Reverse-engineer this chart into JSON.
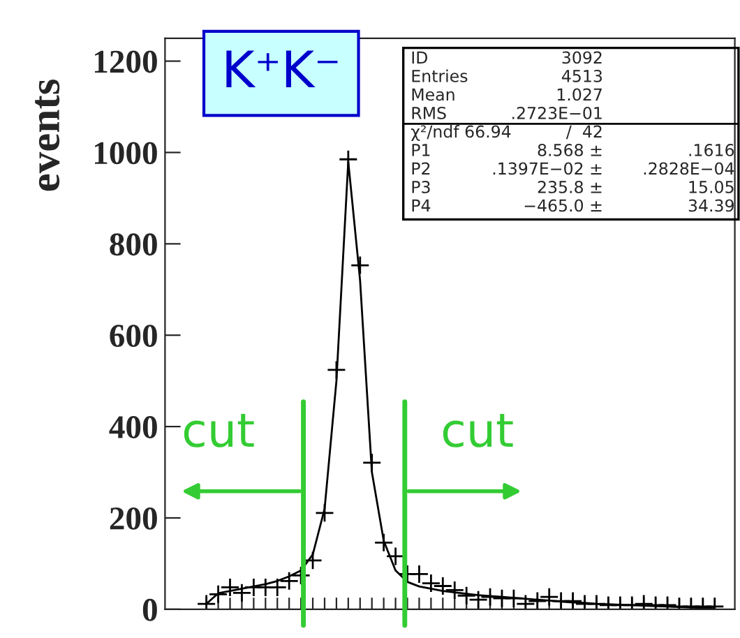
{
  "chart_data": {
    "type": "scatter",
    "title": "K⁺K⁻",
    "ylabel": "events",
    "categories": [
      null,
      null,
      null,
      null,
      null,
      null,
      null,
      null,
      null,
      null,
      null,
      null,
      null,
      null,
      null,
      null,
      null,
      null,
      null,
      null,
      null,
      null,
      null,
      null,
      null,
      null,
      null,
      null,
      null,
      null,
      null,
      null,
      null,
      null,
      null,
      null,
      null,
      null,
      null,
      null,
      null,
      null,
      null,
      null
    ],
    "series": [
      {
        "color": "#000000",
        "marker": "cross",
        "values": [
          12,
          33,
          48,
          36,
          48,
          48,
          48,
          62,
          74,
          107,
          211,
          524,
          985,
          753,
          321,
          146,
          116,
          77,
          77,
          57,
          51,
          42,
          30,
          21,
          27,
          24,
          24,
          12,
          18,
          27,
          18,
          18,
          12,
          12,
          9,
          9,
          9,
          12,
          9,
          9,
          6,
          6,
          6,
          6
        ]
      },
      {
        "type": "line",
        "color": "#000000",
        "line_style": "solid",
        "values": [
          12,
          35,
          40,
          45,
          50,
          55,
          62,
          72,
          85,
          120,
          220,
          500,
          980,
          720,
          300,
          150,
          85,
          60,
          50,
          45,
          40,
          37,
          34,
          31,
          29,
          27,
          25,
          23,
          21,
          19,
          17,
          15,
          14,
          12,
          11,
          10,
          9,
          8,
          7,
          6,
          5,
          4,
          3,
          2
        ]
      }
    ],
    "ylim": [
      0,
      1250
    ],
    "yticks": [
      0,
      200,
      400,
      600,
      800,
      1000,
      1200
    ],
    "tick_labels": "y",
    "grid": false,
    "legend": false,
    "annotations": [
      "ID\t3092",
      "Entries\t4513",
      "Mean\t1.027",
      "RMS\t.2723E−01",
      "χ²/ndf 66.94\t/  42",
      "P1\t8.568 ±\t.1616",
      "P2\t.1397E−02 ±\t.2828E−04",
      "P3\t235.8 ±\t15.05",
      "P4\t−465.0 ±\t34.39",
      "cut",
      "cut"
    ]
  }
}
